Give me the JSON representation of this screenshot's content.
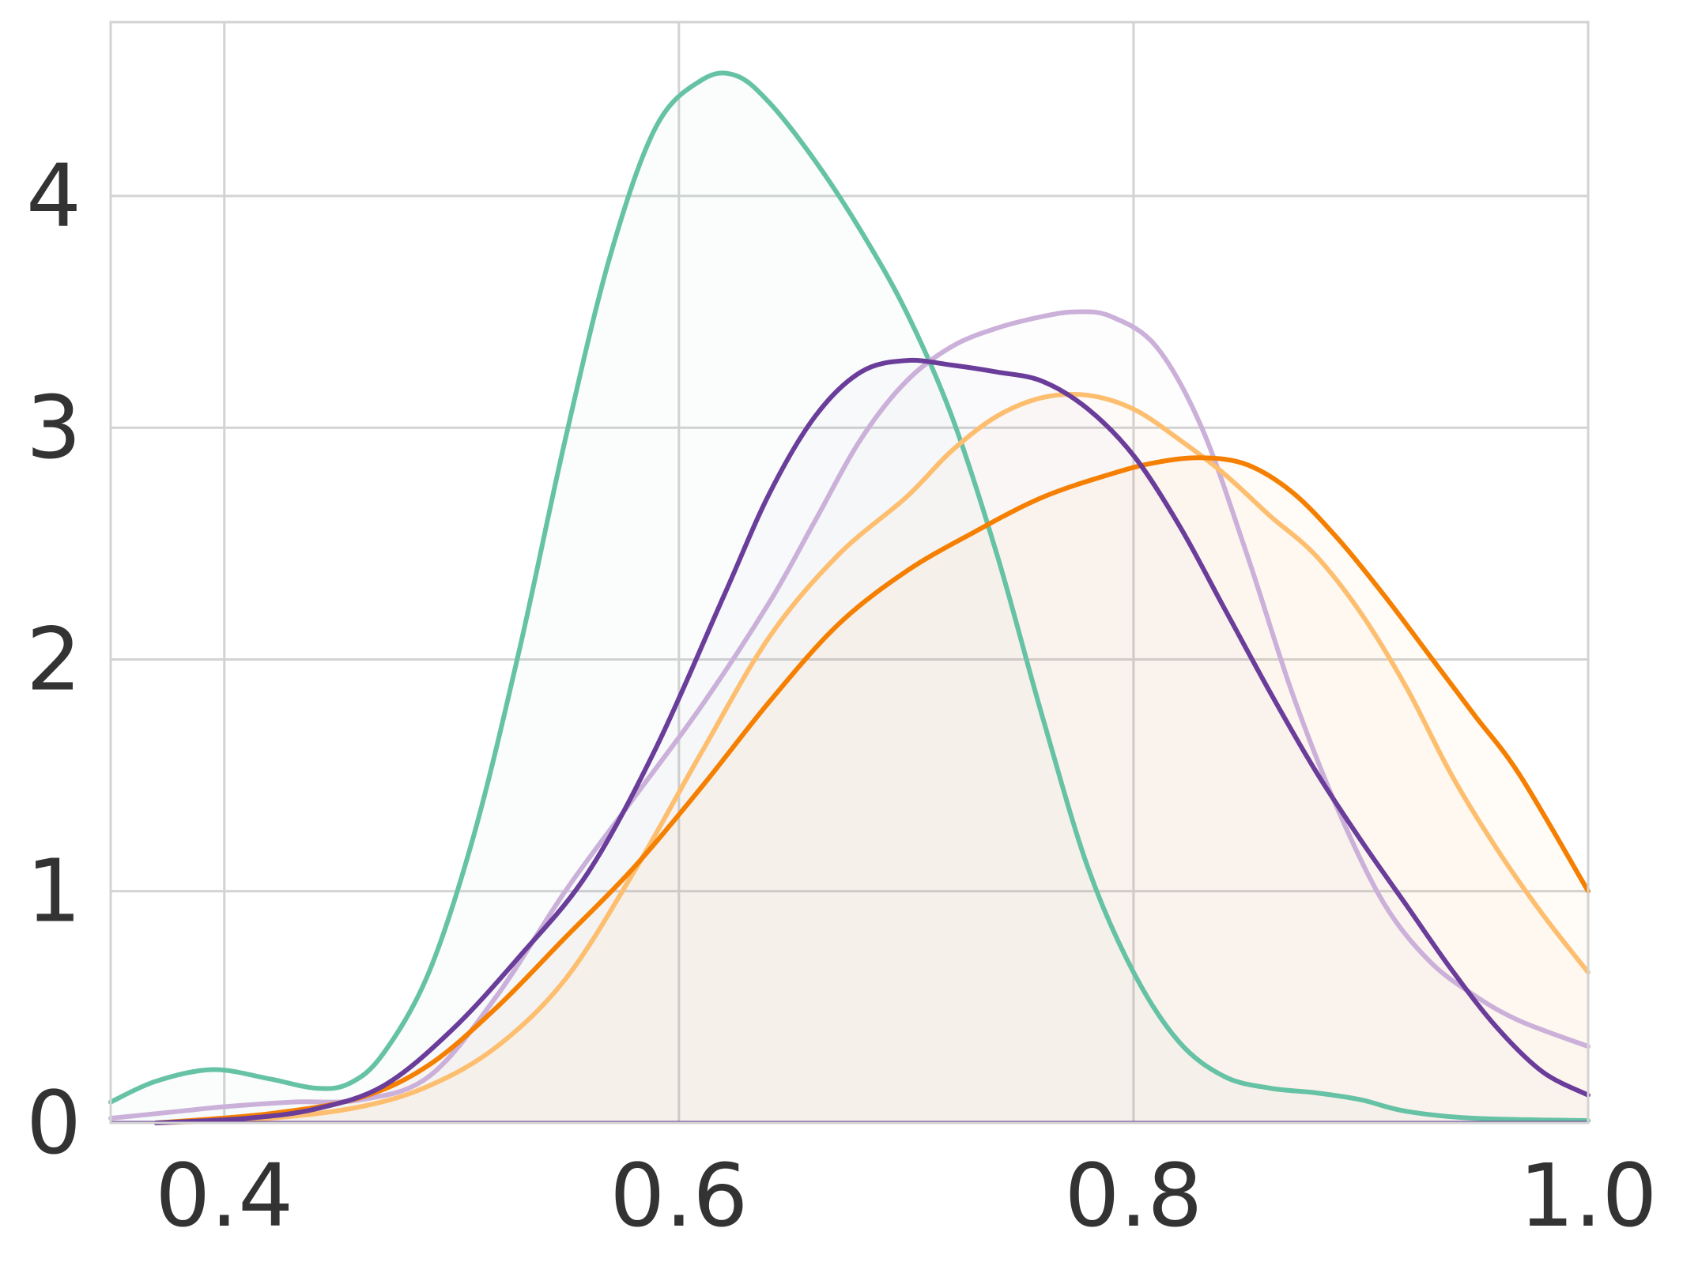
{
  "chart_data": {
    "type": "area",
    "title": "",
    "xlabel": "",
    "ylabel": "",
    "xlim": [
      0.35,
      1.0
    ],
    "ylim": [
      0,
      4.75
    ],
    "x_ticks": [
      0.4,
      0.6,
      0.8,
      1.0
    ],
    "x_tick_labels": [
      "0.4",
      "0.6",
      "0.8",
      "1.0"
    ],
    "y_ticks": [
      0,
      1,
      2,
      3,
      4
    ],
    "y_tick_labels": [
      "0",
      "1",
      "2",
      "3",
      "4"
    ],
    "grid": true,
    "legend": "none",
    "series": [
      {
        "color": "#66c2a5",
        "fill_opacity": 0.03,
        "points": [
          [
            0.35,
            0.09
          ],
          [
            0.37,
            0.18
          ],
          [
            0.395,
            0.23
          ],
          [
            0.42,
            0.19
          ],
          [
            0.44,
            0.15
          ],
          [
            0.455,
            0.17
          ],
          [
            0.47,
            0.3
          ],
          [
            0.49,
            0.65
          ],
          [
            0.51,
            1.25
          ],
          [
            0.53,
            2.05
          ],
          [
            0.55,
            2.95
          ],
          [
            0.57,
            3.75
          ],
          [
            0.59,
            4.3
          ],
          [
            0.61,
            4.5
          ],
          [
            0.625,
            4.52
          ],
          [
            0.64,
            4.4
          ],
          [
            0.66,
            4.15
          ],
          [
            0.68,
            3.85
          ],
          [
            0.7,
            3.5
          ],
          [
            0.72,
            3.05
          ],
          [
            0.74,
            2.45
          ],
          [
            0.76,
            1.75
          ],
          [
            0.78,
            1.1
          ],
          [
            0.8,
            0.65
          ],
          [
            0.82,
            0.35
          ],
          [
            0.84,
            0.2
          ],
          [
            0.86,
            0.15
          ],
          [
            0.88,
            0.13
          ],
          [
            0.9,
            0.1
          ],
          [
            0.92,
            0.05
          ],
          [
            0.95,
            0.02
          ],
          [
            1.0,
            0.01
          ]
        ]
      },
      {
        "color": "#cbb0d9",
        "fill_opacity": 0.03,
        "points": [
          [
            0.35,
            0.02
          ],
          [
            0.38,
            0.05
          ],
          [
            0.4,
            0.07
          ],
          [
            0.43,
            0.09
          ],
          [
            0.46,
            0.1
          ],
          [
            0.49,
            0.2
          ],
          [
            0.52,
            0.55
          ],
          [
            0.55,
            1.0
          ],
          [
            0.58,
            1.4
          ],
          [
            0.61,
            1.8
          ],
          [
            0.64,
            2.25
          ],
          [
            0.66,
            2.6
          ],
          [
            0.68,
            2.95
          ],
          [
            0.7,
            3.2
          ],
          [
            0.72,
            3.35
          ],
          [
            0.74,
            3.43
          ],
          [
            0.76,
            3.48
          ],
          [
            0.775,
            3.5
          ],
          [
            0.79,
            3.48
          ],
          [
            0.81,
            3.35
          ],
          [
            0.83,
            3.0
          ],
          [
            0.85,
            2.45
          ],
          [
            0.87,
            1.85
          ],
          [
            0.89,
            1.35
          ],
          [
            0.91,
            0.95
          ],
          [
            0.93,
            0.7
          ],
          [
            0.95,
            0.55
          ],
          [
            0.97,
            0.44
          ],
          [
            1.0,
            0.33
          ]
        ]
      },
      {
        "color": "#fdbf6f",
        "fill_opacity": 0.05,
        "points": [
          [
            0.37,
            0.0
          ],
          [
            0.42,
            0.02
          ],
          [
            0.46,
            0.07
          ],
          [
            0.49,
            0.16
          ],
          [
            0.52,
            0.33
          ],
          [
            0.55,
            0.62
          ],
          [
            0.58,
            1.08
          ],
          [
            0.61,
            1.6
          ],
          [
            0.64,
            2.1
          ],
          [
            0.67,
            2.45
          ],
          [
            0.7,
            2.7
          ],
          [
            0.72,
            2.9
          ],
          [
            0.74,
            3.05
          ],
          [
            0.76,
            3.13
          ],
          [
            0.78,
            3.14
          ],
          [
            0.8,
            3.08
          ],
          [
            0.82,
            2.95
          ],
          [
            0.84,
            2.8
          ],
          [
            0.86,
            2.62
          ],
          [
            0.88,
            2.45
          ],
          [
            0.9,
            2.2
          ],
          [
            0.92,
            1.88
          ],
          [
            0.94,
            1.5
          ],
          [
            0.96,
            1.18
          ],
          [
            0.98,
            0.9
          ],
          [
            1.0,
            0.65
          ]
        ]
      },
      {
        "color": "#f57f00",
        "fill_opacity": 0.03,
        "points": [
          [
            0.37,
            0.0
          ],
          [
            0.42,
            0.04
          ],
          [
            0.46,
            0.11
          ],
          [
            0.49,
            0.25
          ],
          [
            0.52,
            0.5
          ],
          [
            0.55,
            0.8
          ],
          [
            0.58,
            1.1
          ],
          [
            0.61,
            1.45
          ],
          [
            0.64,
            1.82
          ],
          [
            0.67,
            2.15
          ],
          [
            0.7,
            2.38
          ],
          [
            0.73,
            2.55
          ],
          [
            0.76,
            2.7
          ],
          [
            0.79,
            2.8
          ],
          [
            0.81,
            2.85
          ],
          [
            0.83,
            2.87
          ],
          [
            0.85,
            2.84
          ],
          [
            0.87,
            2.72
          ],
          [
            0.89,
            2.52
          ],
          [
            0.91,
            2.28
          ],
          [
            0.93,
            2.02
          ],
          [
            0.95,
            1.76
          ],
          [
            0.97,
            1.5
          ],
          [
            1.0,
            1.0
          ]
        ]
      },
      {
        "color": "#6a3d9a",
        "fill_opacity": 0.02,
        "points": [
          [
            0.37,
            0.0
          ],
          [
            0.41,
            0.02
          ],
          [
            0.44,
            0.06
          ],
          [
            0.47,
            0.16
          ],
          [
            0.5,
            0.4
          ],
          [
            0.53,
            0.72
          ],
          [
            0.56,
            1.08
          ],
          [
            0.59,
            1.62
          ],
          [
            0.62,
            2.28
          ],
          [
            0.64,
            2.72
          ],
          [
            0.66,
            3.05
          ],
          [
            0.68,
            3.24
          ],
          [
            0.7,
            3.29
          ],
          [
            0.72,
            3.27
          ],
          [
            0.74,
            3.24
          ],
          [
            0.76,
            3.2
          ],
          [
            0.78,
            3.08
          ],
          [
            0.8,
            2.88
          ],
          [
            0.82,
            2.58
          ],
          [
            0.84,
            2.22
          ],
          [
            0.86,
            1.86
          ],
          [
            0.88,
            1.52
          ],
          [
            0.9,
            1.22
          ],
          [
            0.92,
            0.94
          ],
          [
            0.94,
            0.66
          ],
          [
            0.96,
            0.41
          ],
          [
            0.98,
            0.22
          ],
          [
            1.0,
            0.12
          ]
        ]
      }
    ]
  }
}
